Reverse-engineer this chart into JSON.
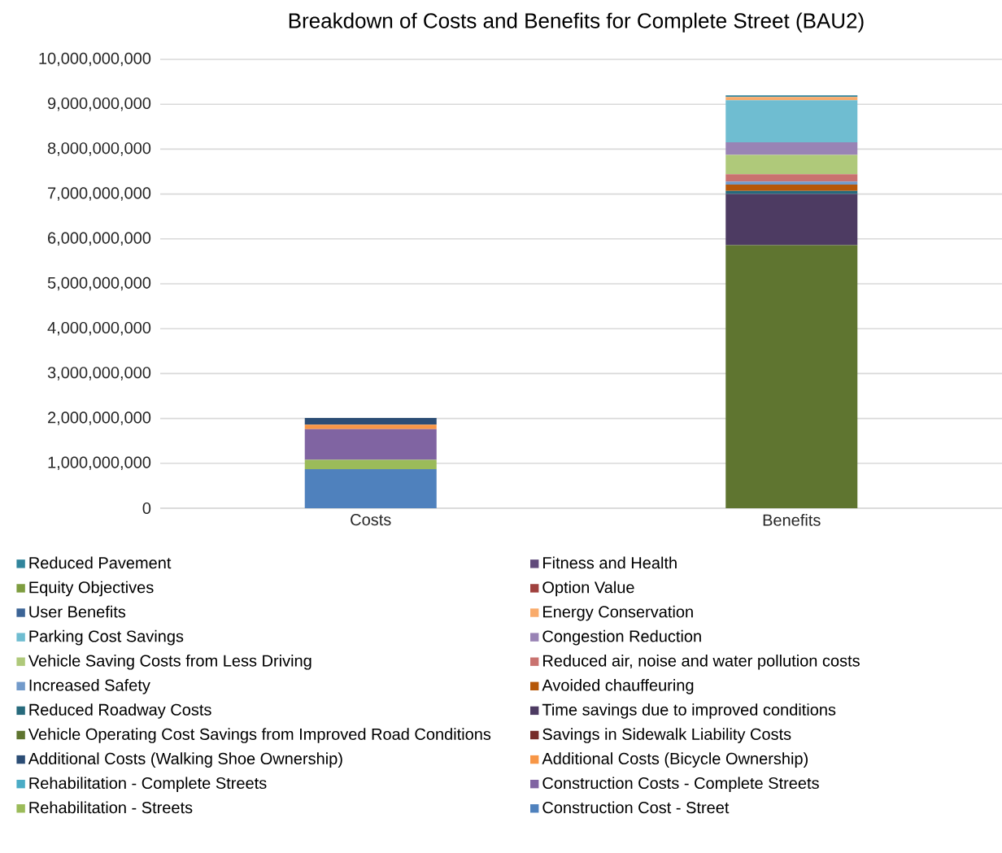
{
  "chart_data": {
    "type": "bar",
    "title": "Breakdown of Costs and Benefits for Complete Street (BAU2)",
    "categories": [
      "Costs",
      "Benefits"
    ],
    "stacked": true,
    "grid": "y",
    "legend": "bottom",
    "ylim": [
      0,
      10000000000
    ],
    "yticks": [
      0,
      {
        "value": 1000000000,
        "label": "1,000,000,000"
      },
      {
        "value": 2000000000,
        "label": "2,000,000,000"
      },
      {
        "value": 3000000000,
        "label": "3,000,000,000"
      },
      {
        "value": 4000000000,
        "label": "4,000,000,000"
      },
      {
        "value": 5000000000,
        "label": "5,000,000,000"
      },
      {
        "value": 6000000000,
        "label": "6,000,000,000"
      },
      {
        "value": 7000000000,
        "label": "7,000,000,000"
      },
      {
        "value": 8000000000,
        "label": "8,000,000,000"
      },
      {
        "value": 9000000000,
        "label": "9,000,000,000"
      },
      {
        "value": 10000000000,
        "label": "10,000,000,000"
      }
    ],
    "series": [
      {
        "name": "Construction Cost - Street",
        "color": "#4f81bd",
        "values": [
          870000000,
          0
        ]
      },
      {
        "name": "Rehabilitation - Streets",
        "color": "#9bbb59",
        "values": [
          210000000,
          0
        ]
      },
      {
        "name": "Construction Costs - Complete Streets",
        "color": "#8064a2",
        "values": [
          680000000,
          0
        ]
      },
      {
        "name": "Rehabilitation - Complete Streets",
        "color": "#4bacc6",
        "values": [
          0,
          0
        ]
      },
      {
        "name": "Additional Costs (Bicycle Ownership)",
        "color": "#f79646",
        "values": [
          100000000,
          0
        ]
      },
      {
        "name": "Additional Costs (Walking Shoe Ownership)",
        "color": "#2c4d75",
        "values": [
          150000000,
          0
        ]
      },
      {
        "name": "Savings in Sidewalk Liability Costs",
        "color": "#772c2a",
        "values": [
          0,
          0
        ]
      },
      {
        "name": "Vehicle Operating Cost Savings from Improved Road Conditions",
        "color": "#5f7530",
        "values": [
          0,
          5860000000
        ]
      },
      {
        "name": "Time savings due to improved conditions",
        "color": "#4d3b62",
        "values": [
          0,
          1140000000
        ]
      },
      {
        "name": "Reduced Roadway Costs",
        "color": "#276a7c",
        "values": [
          0,
          70000000
        ]
      },
      {
        "name": "Avoided chauffeuring",
        "color": "#b65708",
        "values": [
          0,
          140000000
        ]
      },
      {
        "name": "Increased Safety",
        "color": "#729aca",
        "values": [
          0,
          70000000
        ]
      },
      {
        "name": "Reduced air, noise and water pollution costs",
        "color": "#c9726f",
        "values": [
          0,
          160000000
        ]
      },
      {
        "name": "Vehicle Saving Costs from Less Driving",
        "color": "#afc97a",
        "values": [
          0,
          430000000
        ]
      },
      {
        "name": "Congestion Reduction",
        "color": "#9983b5",
        "values": [
          0,
          280000000
        ]
      },
      {
        "name": "Parking Cost Savings",
        "color": "#6fbdd1",
        "values": [
          0,
          940000000
        ]
      },
      {
        "name": "Energy Conservation",
        "color": "#f9ab6b",
        "values": [
          0,
          70000000
        ]
      },
      {
        "name": "User Benefits",
        "color": "#3c6496",
        "values": [
          0,
          0
        ]
      },
      {
        "name": "Option Value",
        "color": "#a0413e",
        "values": [
          0,
          0
        ]
      },
      {
        "name": "Equity Objectives",
        "color": "#7e9d40",
        "values": [
          0,
          0
        ]
      },
      {
        "name": "Fitness and Health",
        "color": "#604a7b",
        "values": [
          0,
          0
        ]
      },
      {
        "name": "Reduced Pavement",
        "color": "#31859c",
        "values": [
          0,
          40000000
        ]
      }
    ]
  }
}
